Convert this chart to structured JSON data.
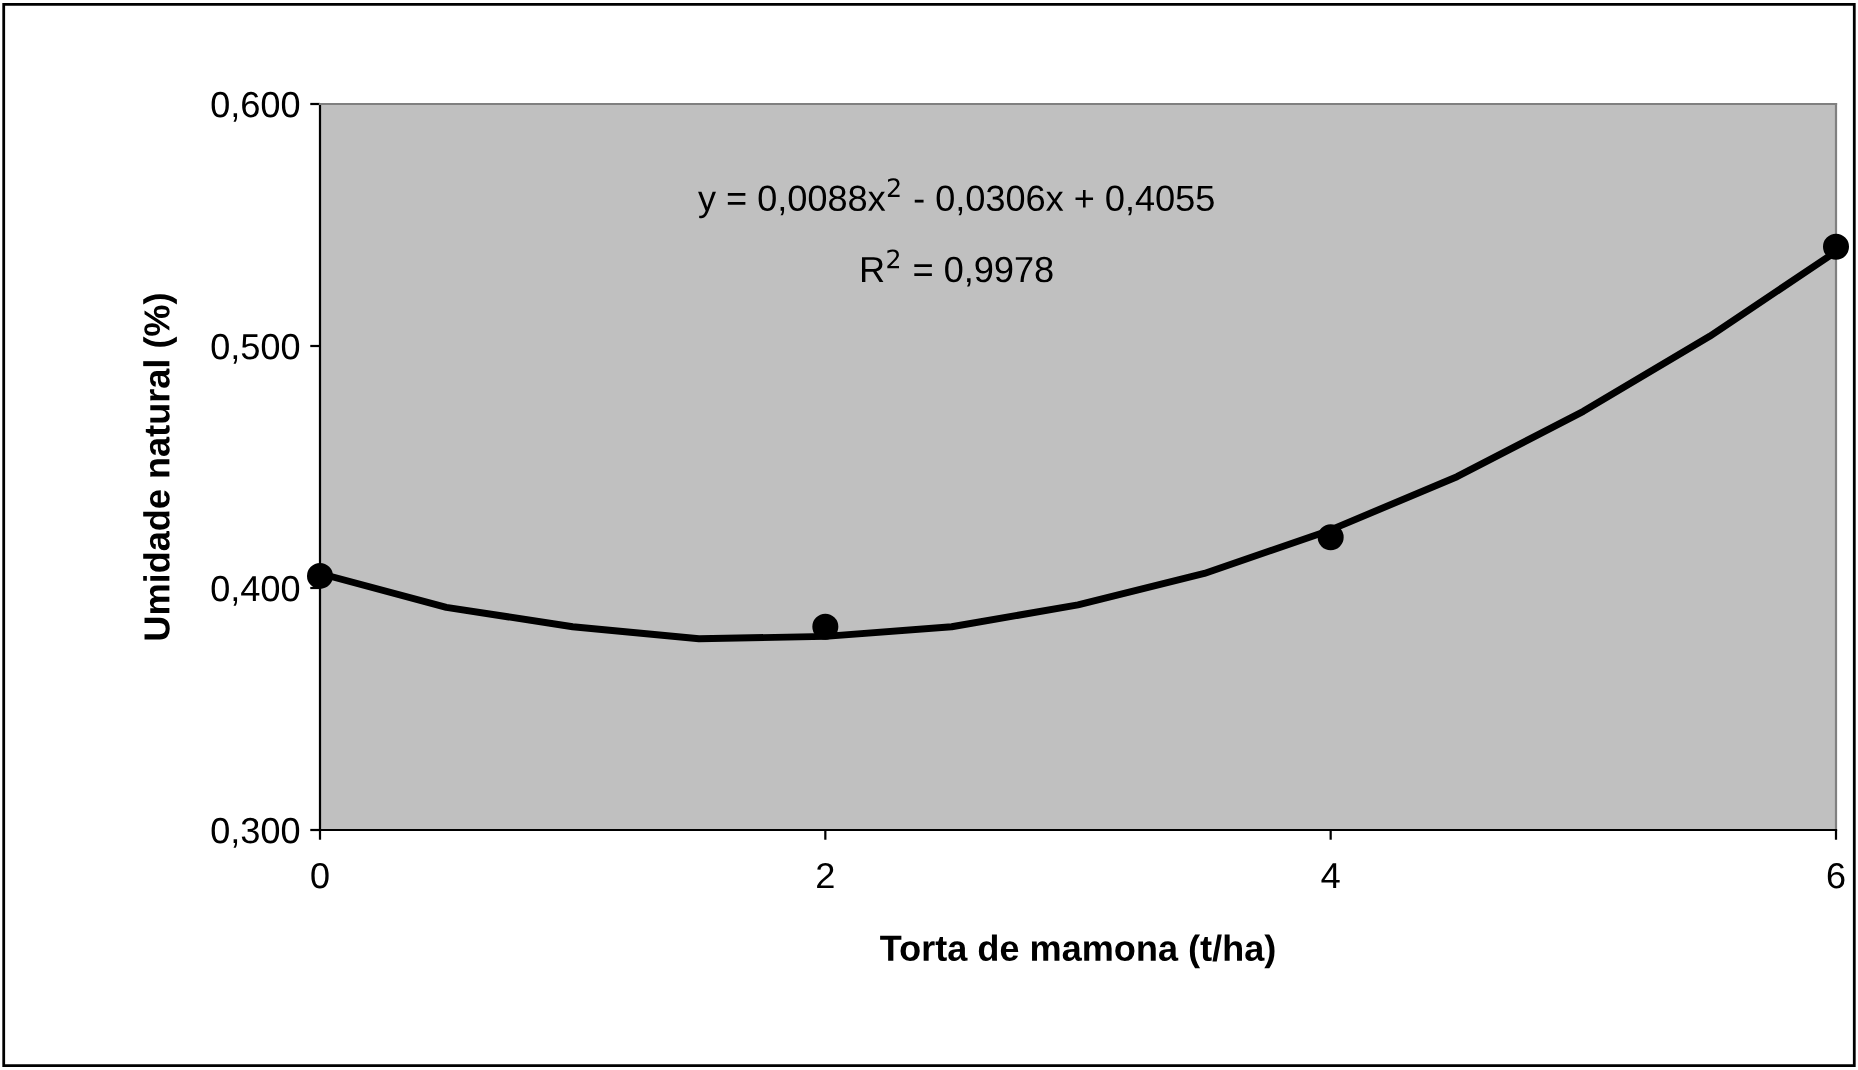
{
  "chart_data": {
    "type": "scatter",
    "xlabel": "Torta de mamona (t/ha)",
    "ylabel": "Umidade natural (%)",
    "annotations": [
      "y = 0,0088x$^{2}$ - 0,0306x + 0,4055",
      "R$^{2}$ = 0,9978"
    ],
    "series": [
      {
        "color": "#000000",
        "marker": "circle",
        "x": [
          0,
          2,
          4,
          6
        ],
        "values": [
          0.405,
          0.384,
          0.421,
          0.541
        ]
      },
      {
        "type": "line",
        "color": "#000000",
        "marker": "none",
        "line_style": "solid",
        "x": [
          0,
          0.5,
          1,
          1.5,
          2,
          2.5,
          3,
          3.5,
          4,
          4.5,
          5,
          5.5,
          6
        ],
        "values": [
          0.406,
          0.392,
          0.384,
          0.379,
          0.38,
          0.384,
          0.393,
          0.406,
          0.424,
          0.446,
          0.473,
          0.504,
          0.539
        ]
      }
    ],
    "xlim": [
      0,
      6
    ],
    "xticks": [
      0,
      2,
      4,
      6
    ],
    "ylim": [
      0.3,
      0.6
    ],
    "yticks": [
      {
        "value": 0.3,
        "label": "0,300"
      },
      {
        "value": 0.4,
        "label": "0,400"
      },
      {
        "value": 0.5,
        "label": "0,500"
      },
      {
        "value": 0.6,
        "label": "0,600"
      }
    ],
    "grid": false,
    "legend": false
  }
}
